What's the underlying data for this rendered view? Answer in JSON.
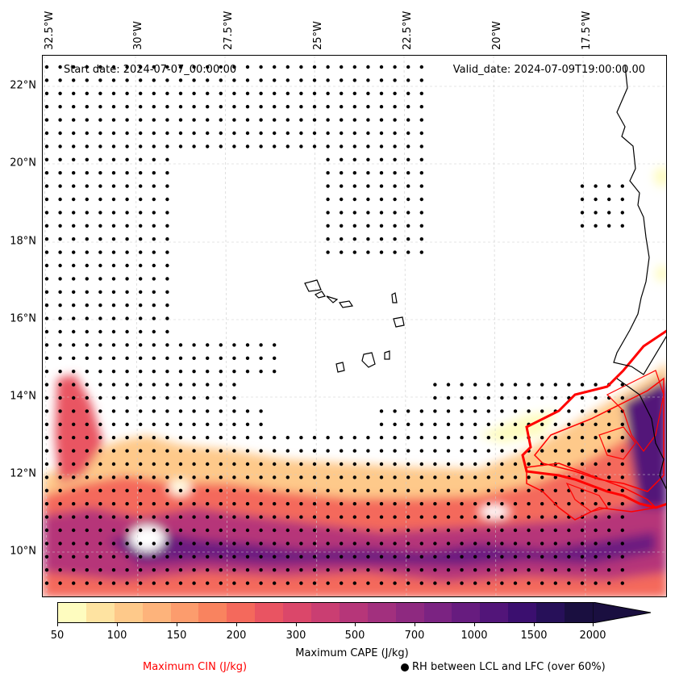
{
  "map": {
    "start_date": "Start date: 2024-07-07_00:00:00",
    "valid_date": "Valid_date: 2024-07-09T19:00:00.00",
    "lon_labels": [
      "32.5°W",
      "30°W",
      "27.5°W",
      "25°W",
      "22.5°W",
      "20°W",
      "17.5°W"
    ],
    "lat_labels": [
      "22°N",
      "20°N",
      "18°N",
      "16°N",
      "14°N",
      "12°N",
      "10°N"
    ],
    "extent": {
      "lon_min": -33.0,
      "lon_max": -16.0,
      "lat_min": 8.9,
      "lat_max": 22.7
    }
  },
  "colorbar": {
    "title": "Maximum CAPE (J/kg)",
    "ticks": [
      "50",
      "100",
      "150",
      "200",
      "300",
      "500",
      "700",
      "1000",
      "1500",
      "2000"
    ],
    "colors": [
      "#fefcbf",
      "#fee3a1",
      "#fec98a",
      "#fdb37b",
      "#fc9c6d",
      "#f9835f",
      "#f4695c",
      "#e95462",
      "#db476a",
      "#ca3e72",
      "#b63679",
      "#a2307e",
      "#8e2980",
      "#7b2382",
      "#671c7f",
      "#521579",
      "#3b0f6f",
      "#271059",
      "#1a0f40"
    ],
    "extend_color": "#1a0f40"
  },
  "legend": {
    "cin_label": "Maximum CIN (J/kg)",
    "cin_color": "#ff0000",
    "rh_label": "RH between LCL and LFC (over 60%)"
  }
}
